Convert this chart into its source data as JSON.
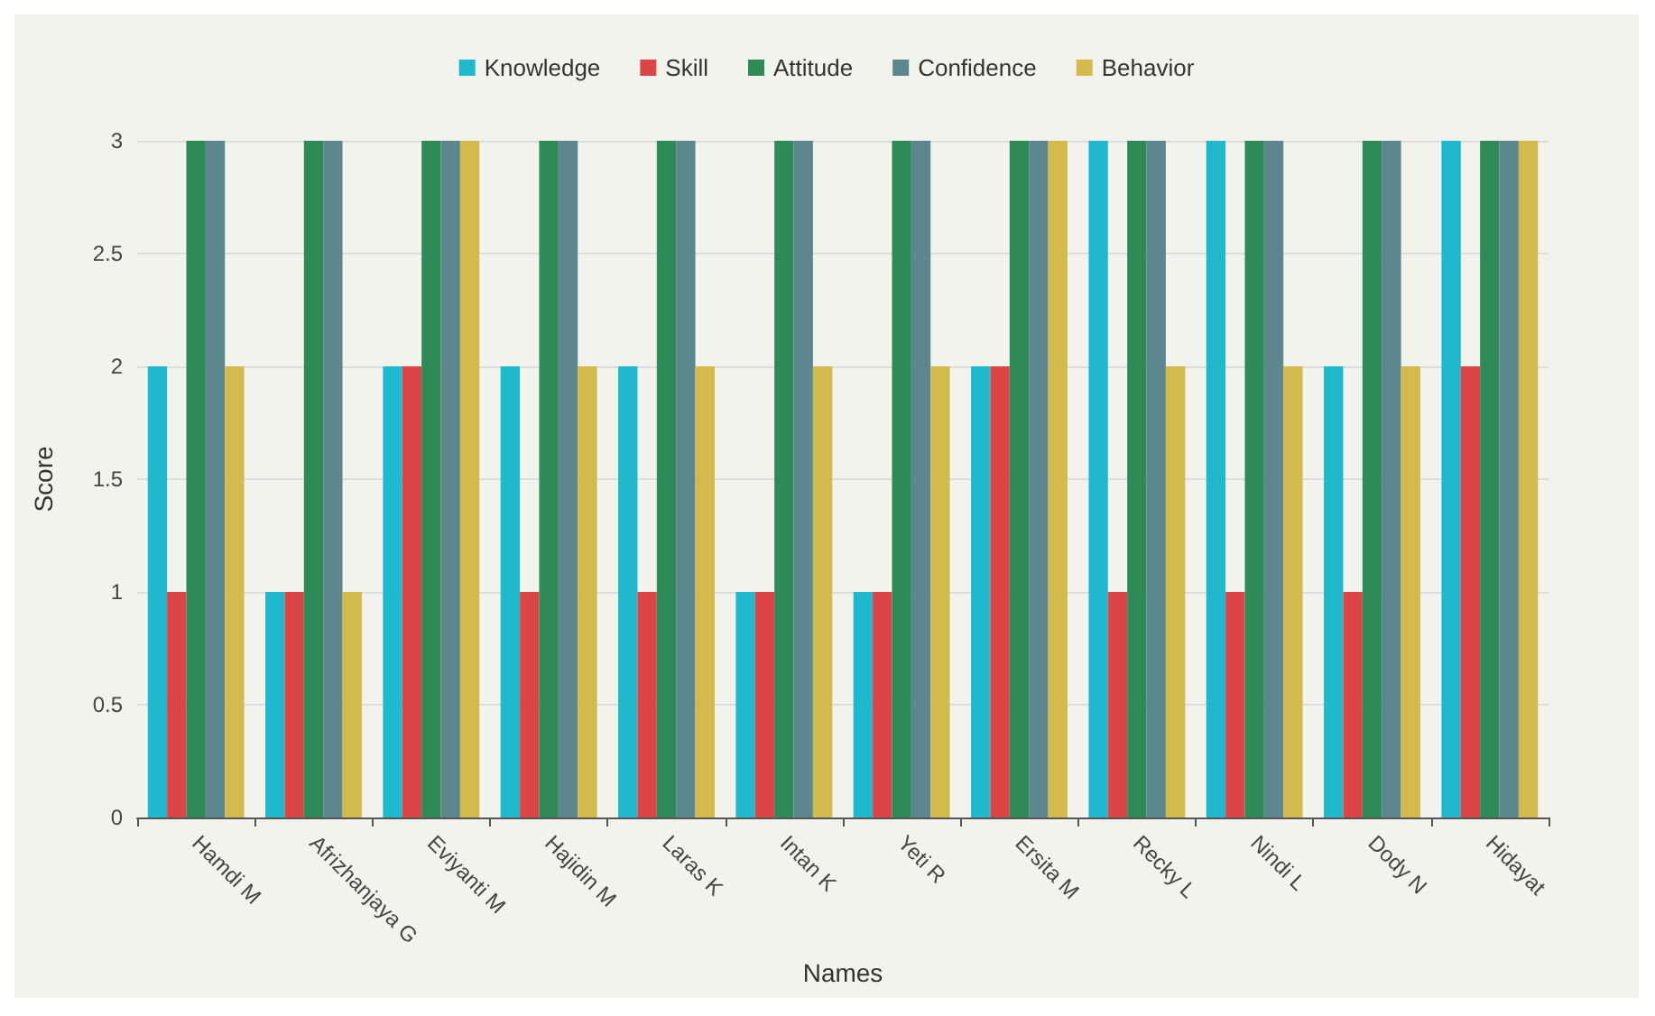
{
  "chart_data": {
    "type": "bar",
    "xlabel": "Names",
    "ylabel": "Score",
    "categories": [
      "Hamdi M",
      "Afrizhanjaya G",
      "Eviyanti M",
      "Hajidin M",
      "Laras K",
      "Intan K",
      "Yeti R",
      "Ersita M",
      "Recky L",
      "Nindi L",
      "Dody N",
      "Hidayat"
    ],
    "series": [
      {
        "name": "Knowledge",
        "color": "#1fb8cd",
        "values": [
          2,
          1,
          2,
          2,
          2,
          1,
          1,
          2,
          3,
          3,
          2,
          3
        ]
      },
      {
        "name": "Skill",
        "color": "#db4545",
        "values": [
          1,
          1,
          2,
          1,
          1,
          1,
          1,
          2,
          1,
          1,
          1,
          2
        ]
      },
      {
        "name": "Attitude",
        "color": "#2e8b57",
        "values": [
          3,
          3,
          3,
          3,
          3,
          3,
          3,
          3,
          3,
          3,
          3,
          3
        ]
      },
      {
        "name": "Confidence",
        "color": "#5d878f",
        "values": [
          3,
          3,
          3,
          3,
          3,
          3,
          3,
          3,
          3,
          3,
          3,
          3
        ]
      },
      {
        "name": "Behavior",
        "color": "#d2ba4c",
        "values": [
          2,
          1,
          3,
          2,
          2,
          2,
          2,
          3,
          2,
          2,
          2,
          3
        ]
      }
    ],
    "ylim": [
      0,
      3
    ],
    "yticks": [
      0,
      0.5,
      1,
      1.5,
      2,
      2.5,
      3
    ],
    "grid": "y",
    "legend": "top"
  }
}
